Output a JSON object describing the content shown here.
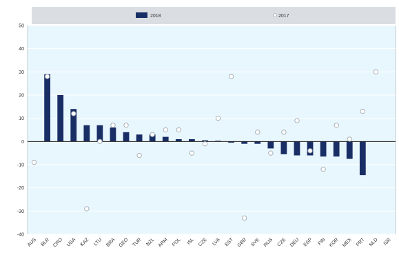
{
  "chart_data": {
    "type": "bar",
    "legend": {
      "position": "top",
      "items": [
        {
          "label": "2018",
          "marker": "bar"
        },
        {
          "label": "2017",
          "marker": "circle"
        }
      ]
    },
    "y_ticks": [
      "50",
      "40",
      "30",
      "20",
      "10",
      "0",
      "-10",
      "-20",
      "-30",
      "-40"
    ],
    "ylim": [
      -40,
      50
    ],
    "categories": [
      "AUS",
      "BLR",
      "CRO",
      "USA",
      "KAZ",
      "LTU",
      "BRA",
      "GEO",
      "TUR",
      "NZL",
      "ARM",
      "POL",
      "ISL",
      "CZE",
      "LVA",
      "EST",
      "GBR",
      "SVK",
      "RUS",
      "CZE",
      "DEU",
      "ESP",
      "FIN",
      "KOR",
      "MEX",
      "PRT",
      "NLD",
      "ISR"
    ],
    "series": [
      {
        "name": "2018",
        "type": "bar",
        "values": [
          0,
          29,
          20,
          14,
          7,
          7,
          6,
          4,
          3,
          3,
          2,
          1,
          1,
          0.5,
          0.3,
          -0.5,
          -1,
          -1,
          -3,
          -5.5,
          -6,
          -6,
          -6.5,
          -6.5,
          -7.5,
          -14.5,
          0,
          0
        ]
      },
      {
        "name": "2017",
        "type": "marker",
        "values": [
          -9,
          28,
          null,
          12,
          -29,
          0,
          7,
          7,
          -6,
          3,
          5,
          5,
          -5,
          -1,
          10,
          28,
          -33,
          4,
          -5,
          4,
          9,
          -4,
          -12,
          7,
          1,
          13,
          30,
          null
        ]
      }
    ]
  }
}
